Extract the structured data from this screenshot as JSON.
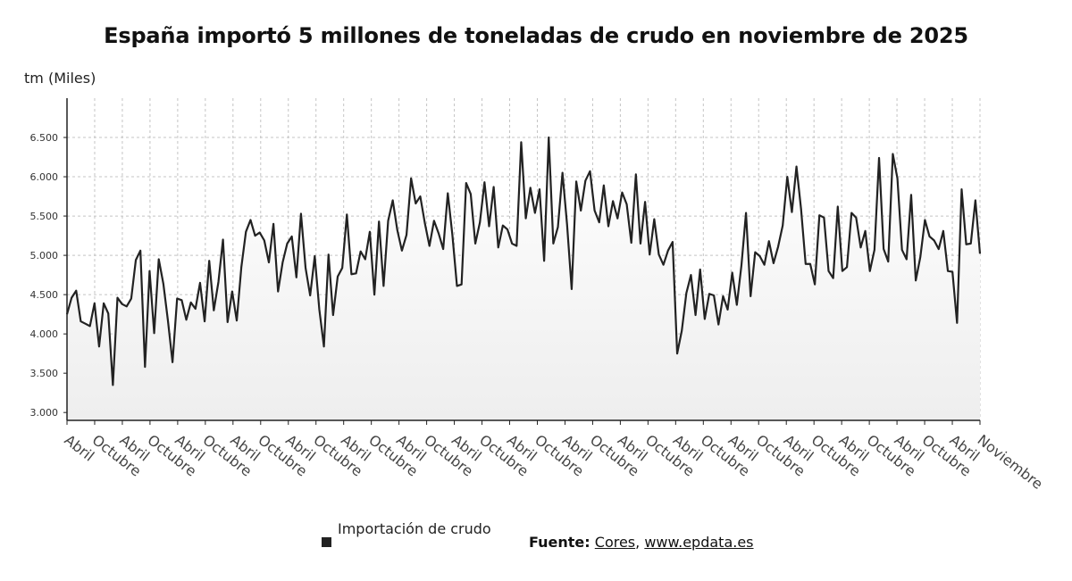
{
  "title": "España importó 5 millones de toneladas de crudo en noviembre de 2025",
  "unit_label": "tm (Miles)",
  "legend": {
    "label": "Importación de crudo",
    "color": "#222222"
  },
  "source": {
    "label": "Fuente:",
    "name": "Cores",
    "separator": ",",
    "site": "www.epdata.es"
  },
  "chart_data": {
    "type": "area",
    "title": "España importó 5 millones de toneladas de crudo en noviembre de 2025",
    "ylabel": "tm (Miles)",
    "ylim": [
      2900,
      7000
    ],
    "yticks": [
      3000,
      3500,
      4000,
      4500,
      5000,
      5500,
      6000,
      6500
    ],
    "ytick_labels": [
      "3.000",
      "3.500",
      "4.000",
      "4.500",
      "5.000",
      "5.500",
      "6.000",
      "6.500"
    ],
    "x_tick_labels": [
      "Abril",
      "Octubre",
      "Abril",
      "Octubre",
      "Abril",
      "Octubre",
      "Abril",
      "Octubre",
      "Abril",
      "Octubre",
      "Abril",
      "Octubre",
      "Abril",
      "Octubre",
      "Abril",
      "Octubre",
      "Abril",
      "Octubre",
      "Abril",
      "Octubre",
      "Abril",
      "Octubre",
      "Abril",
      "Octubre",
      "Abril",
      "Octubre",
      "Abril",
      "Octubre",
      "Abril",
      "Octubre",
      "Abril",
      "Octubre",
      "Abril",
      "Noviembre"
    ],
    "grid": true,
    "line_color": "#222222",
    "fill_color": "#eeeeee",
    "series": [
      {
        "name": "Importación de crudo",
        "values": [
          4250,
          4460,
          4550,
          4160,
          4130,
          4100,
          4390,
          3840,
          4390,
          4260,
          3350,
          4460,
          4380,
          4350,
          4450,
          4940,
          5060,
          3580,
          4800,
          4010,
          4950,
          4640,
          4170,
          3640,
          4450,
          4430,
          4180,
          4400,
          4320,
          4650,
          4160,
          4930,
          4300,
          4660,
          5200,
          4150,
          4540,
          4170,
          4850,
          5300,
          5450,
          5250,
          5290,
          5190,
          4910,
          5400,
          4540,
          4910,
          5150,
          5240,
          4720,
          5530,
          4840,
          4490,
          4990,
          4310,
          3840,
          5010,
          4240,
          4730,
          4840,
          5520,
          4760,
          4770,
          5050,
          4950,
          5300,
          4500,
          5430,
          4610,
          5440,
          5700,
          5320,
          5060,
          5260,
          5980,
          5660,
          5750,
          5410,
          5120,
          5440,
          5280,
          5080,
          5790,
          5260,
          4610,
          4630,
          5920,
          5780,
          5150,
          5420,
          5930,
          5370,
          5870,
          5100,
          5380,
          5330,
          5150,
          5120,
          6440,
          5470,
          5860,
          5540,
          5840,
          4930,
          6500,
          5150,
          5360,
          6050,
          5390,
          4570,
          5940,
          5570,
          5950,
          6070,
          5570,
          5420,
          5890,
          5370,
          5690,
          5470,
          5800,
          5650,
          5160,
          6030,
          5150,
          5680,
          5010,
          5460,
          5010,
          4880,
          5060,
          5170,
          3750,
          4040,
          4520,
          4750,
          4240,
          4820,
          4190,
          4510,
          4490,
          4120,
          4480,
          4310,
          4780,
          4370,
          4870,
          5540,
          4480,
          5040,
          4990,
          4880,
          5180,
          4900,
          5110,
          5380,
          6000,
          5550,
          6130,
          5590,
          4890,
          4890,
          4630,
          5510,
          5480,
          4800,
          4710,
          5620,
          4800,
          4850,
          5540,
          5480,
          5100,
          5310,
          4800,
          5070,
          6240,
          5080,
          4920,
          6290,
          5980,
          5070,
          4950,
          5770,
          4680,
          4980,
          5450,
          5240,
          5190,
          5080,
          5310,
          4800,
          4790,
          4140,
          5840,
          5140,
          5150,
          5700,
          5020
        ]
      }
    ]
  }
}
